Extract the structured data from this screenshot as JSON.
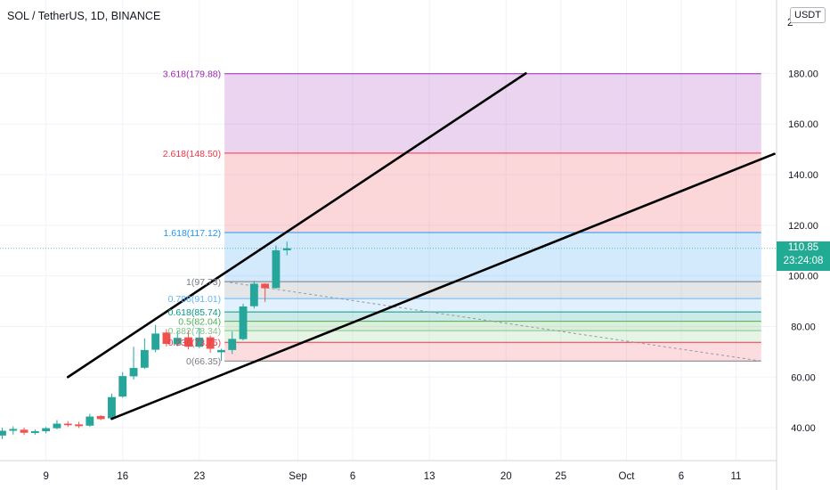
{
  "header": {
    "symbol_title": "SOL / TetherUS, 1D, BINANCE",
    "currency_badge": "USDT",
    "clipped_axis_digit": "2"
  },
  "last_price": {
    "price": "110.85",
    "countdown": "23:24:08",
    "color": "#22ab94"
  },
  "colors": {
    "up": "#26a69a",
    "down": "#ef5350",
    "axis_text": "#131722",
    "grid": "#f0f3fa"
  },
  "chart_data": {
    "type": "candlestick",
    "title": "SOL / TetherUS, 1D, BINANCE",
    "y_axis": {
      "ticks": [
        "40.00",
        "60.00",
        "80.00",
        "100.00",
        "120.00",
        "140.00",
        "160.00",
        "180.00"
      ],
      "tick_values": [
        40,
        60,
        80,
        100,
        120,
        140,
        160,
        180
      ],
      "ylim": [
        27,
        209
      ]
    },
    "x_axis": {
      "tick_labels": [
        "9",
        "16",
        "23",
        "Sep",
        "6",
        "13",
        "20",
        "25",
        "Oct",
        "6",
        "11"
      ],
      "tick_days": [
        9,
        16,
        23,
        32,
        37,
        44,
        51,
        56,
        62,
        67,
        72
      ],
      "day_range": [
        4.8,
        75.7
      ],
      "day_index_note": "day 1 = Aug 1"
    },
    "candles": [
      {
        "day": 5,
        "o": 36.9,
        "h": 40.0,
        "l": 35.5,
        "c": 38.8
      },
      {
        "day": 6,
        "o": 38.8,
        "h": 40.5,
        "l": 37.3,
        "c": 39.5
      },
      {
        "day": 7,
        "o": 39.2,
        "h": 40.0,
        "l": 37.1,
        "c": 38.0
      },
      {
        "day": 8,
        "o": 37.9,
        "h": 39.3,
        "l": 37.2,
        "c": 38.6
      },
      {
        "day": 9,
        "o": 38.6,
        "h": 40.3,
        "l": 37.8,
        "c": 39.8
      },
      {
        "day": 10,
        "o": 39.8,
        "h": 43.0,
        "l": 39.4,
        "c": 41.6
      },
      {
        "day": 11,
        "o": 41.6,
        "h": 42.6,
        "l": 40.3,
        "c": 41.0
      },
      {
        "day": 12,
        "o": 41.3,
        "h": 42.3,
        "l": 39.9,
        "c": 40.6
      },
      {
        "day": 13,
        "o": 40.8,
        "h": 45.5,
        "l": 40.4,
        "c": 44.4
      },
      {
        "day": 14,
        "o": 44.6,
        "h": 45.0,
        "l": 43.0,
        "c": 43.4
      },
      {
        "day": 15,
        "o": 43.7,
        "h": 53.5,
        "l": 43.2,
        "c": 52.1
      },
      {
        "day": 16,
        "o": 52.3,
        "h": 62.0,
        "l": 51.8,
        "c": 60.4
      },
      {
        "day": 17,
        "o": 60.3,
        "h": 72.0,
        "l": 59.0,
        "c": 63.6
      },
      {
        "day": 18,
        "o": 63.7,
        "h": 75.3,
        "l": 63.2,
        "c": 70.7
      },
      {
        "day": 19,
        "o": 70.8,
        "h": 80.6,
        "l": 69.8,
        "c": 77.2
      },
      {
        "day": 20,
        "o": 77.6,
        "h": 78.9,
        "l": 72.1,
        "c": 73.1
      },
      {
        "day": 21,
        "o": 72.9,
        "h": 78.4,
        "l": 72.2,
        "c": 75.5
      },
      {
        "day": 22,
        "o": 75.7,
        "h": 78.5,
        "l": 70.9,
        "c": 72.0
      },
      {
        "day": 23,
        "o": 72.0,
        "h": 79.5,
        "l": 71.4,
        "c": 75.6
      },
      {
        "day": 24,
        "o": 75.7,
        "h": 76.4,
        "l": 69.6,
        "c": 71.2
      },
      {
        "day": 25,
        "o": 69.8,
        "h": 71.2,
        "l": 66.4,
        "c": 70.7
      },
      {
        "day": 26,
        "o": 70.7,
        "h": 78.0,
        "l": 69.1,
        "c": 75.1
      },
      {
        "day": 27,
        "o": 75.0,
        "h": 89.0,
        "l": 74.5,
        "c": 87.9
      },
      {
        "day": 28,
        "o": 88.0,
        "h": 98.0,
        "l": 87.1,
        "c": 96.9
      },
      {
        "day": 29,
        "o": 96.9,
        "h": 97.0,
        "l": 89.7,
        "c": 95.1
      },
      {
        "day": 30,
        "o": 95.2,
        "h": 112.0,
        "l": 94.8,
        "c": 110.1
      },
      {
        "day": 31,
        "o": 110.1,
        "h": 113.5,
        "l": 108.1,
        "c": 110.9
      }
    ],
    "fib_extension": {
      "start_day": 25.3,
      "end_day": 74.3,
      "levels": [
        {
          "label": "0(66.35)",
          "ratio": 0,
          "price": 66.35,
          "line": "#787b86",
          "fill": "#f7525f"
        },
        {
          "label": "0.236(73.75)",
          "ratio": 0.236,
          "price": 73.75,
          "line": "#f23645",
          "fill": "#81c784"
        },
        {
          "label": "0.382(78.34)",
          "ratio": 0.382,
          "price": 78.34,
          "line": "#81c784",
          "fill": "#4caf50"
        },
        {
          "label": "0.5(82.04)",
          "ratio": 0.5,
          "price": 82.04,
          "line": "#4caf50",
          "fill": "#009688"
        },
        {
          "label": "0.618(85.74)",
          "ratio": 0.618,
          "price": 85.74,
          "line": "#089981",
          "fill": "#64b5f6"
        },
        {
          "label": "0.786(91.01)",
          "ratio": 0.786,
          "price": 91.01,
          "line": "#64b5f6",
          "fill": "#787b86"
        },
        {
          "label": "1(97.73)",
          "ratio": 1,
          "price": 97.73,
          "line": "#787b86",
          "fill": "#2196f3"
        },
        {
          "label": "1.618(117.12)",
          "ratio": 1.618,
          "price": 117.12,
          "line": "#2196f3",
          "fill": "#f23645"
        },
        {
          "label": "2.618(148.50)",
          "ratio": 2.618,
          "price": 148.5,
          "line": "#f23645",
          "fill": "#9c27b0"
        },
        {
          "label": "3.618(179.88)",
          "ratio": 3.618,
          "price": 179.88,
          "line": "#9c27b0",
          "fill": null
        }
      ]
    },
    "trend_lines": [
      {
        "from": {
          "day": 11,
          "price": 60
        },
        "to": {
          "day": 52.8,
          "price": 180
        },
        "color": "#000000"
      },
      {
        "from": {
          "day": 15,
          "price": 43.5
        },
        "to": {
          "day": 75.5,
          "price": 148.2
        },
        "color": "#000000"
      }
    ],
    "dashed_line": {
      "from": {
        "day": 25.3,
        "price": 97.73
      },
      "to": {
        "day": 74.3,
        "price": 66.35
      },
      "color": "#9598a1"
    },
    "grid": true
  }
}
